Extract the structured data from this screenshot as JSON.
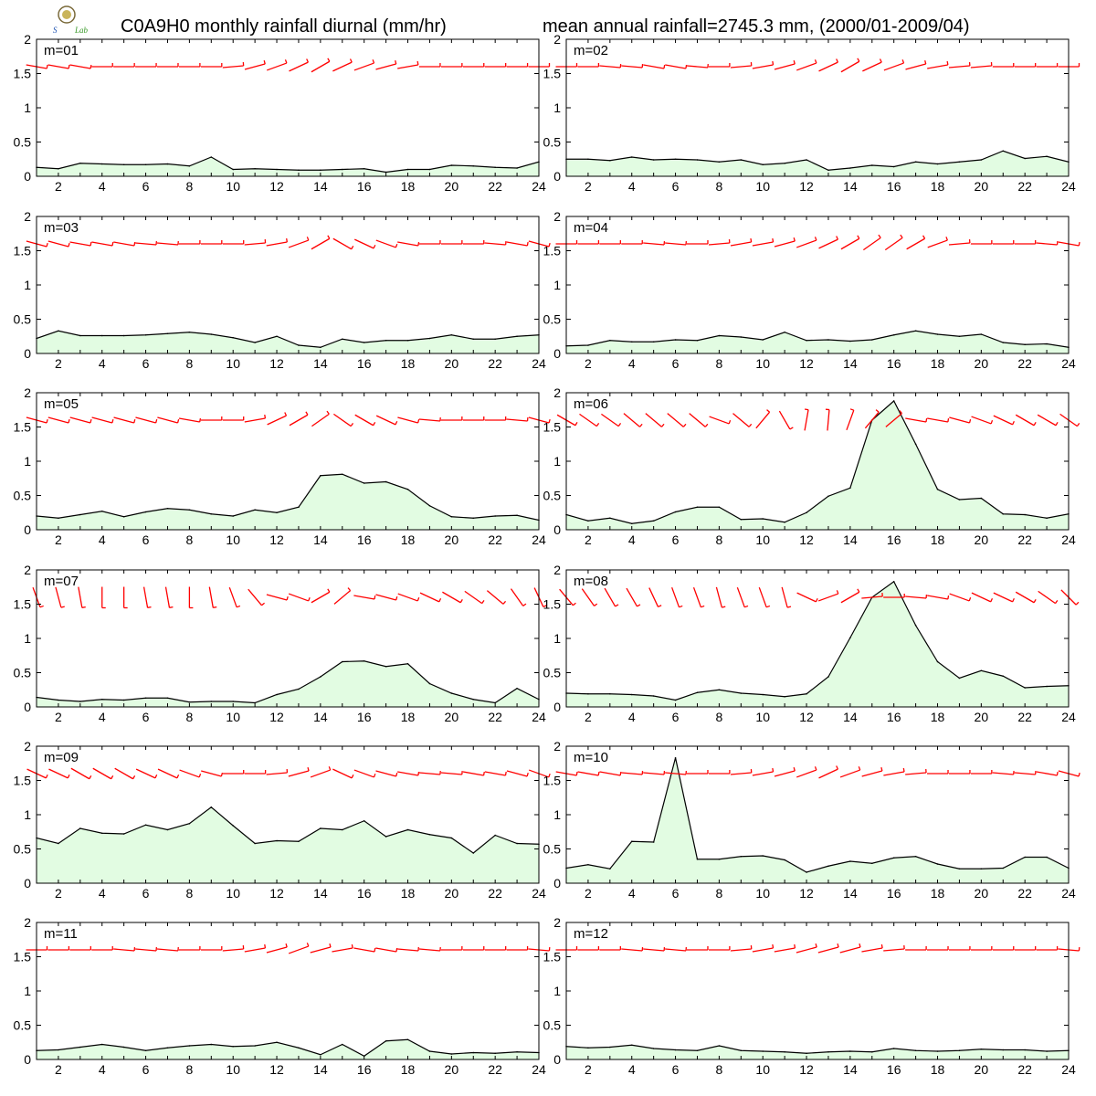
{
  "title_left": "C0A9H0 monthly rainfall diurnal (mm/hr)",
  "title_right": "mean annual rainfall=2745.3 mm, (2000/01-2009/04)",
  "colors": {
    "fill": "#e2fce2",
    "line": "#000000",
    "wind": "#ff0000",
    "frame": "#000000"
  },
  "chart_data": {
    "type": "area",
    "x": [
      1,
      2,
      3,
      4,
      5,
      6,
      7,
      8,
      9,
      10,
      11,
      12,
      13,
      14,
      15,
      16,
      17,
      18,
      19,
      20,
      21,
      22,
      23,
      24
    ],
    "xlim": [
      1,
      24
    ],
    "ylim": [
      0,
      2
    ],
    "x_tick_labels": [
      "2",
      "4",
      "6",
      "8",
      "10",
      "12",
      "14",
      "16",
      "18",
      "20",
      "22",
      "24"
    ],
    "y_tick_labels": [
      "0",
      "0.5",
      "1",
      "1.5",
      "2"
    ],
    "wind_baseline_y": 1.6,
    "panels": [
      {
        "label": "m=01",
        "values": [
          0.13,
          0.11,
          0.19,
          0.18,
          0.17,
          0.17,
          0.18,
          0.15,
          0.28,
          0.1,
          0.11,
          0.1,
          0.09,
          0.09,
          0.1,
          0.11,
          0.06,
          0.1,
          0.1,
          0.16,
          0.15,
          0.13,
          0.12,
          0.21
        ],
        "wind_angles": [
          -10,
          -10,
          -10,
          0,
          0,
          0,
          0,
          0,
          0,
          5,
          15,
          20,
          25,
          30,
          25,
          20,
          15,
          10,
          0,
          0,
          0,
          0,
          0,
          0
        ]
      },
      {
        "label": "m=02",
        "values": [
          0.25,
          0.25,
          0.23,
          0.28,
          0.24,
          0.25,
          0.24,
          0.21,
          0.24,
          0.17,
          0.19,
          0.24,
          0.09,
          0.12,
          0.16,
          0.14,
          0.21,
          0.18,
          0.21,
          0.24,
          0.37,
          0.26,
          0.29,
          0.21
        ],
        "wind_angles": [
          0,
          0,
          -5,
          -5,
          -10,
          -10,
          -5,
          0,
          5,
          10,
          15,
          20,
          25,
          30,
          25,
          20,
          15,
          10,
          5,
          5,
          0,
          0,
          0,
          0
        ]
      },
      {
        "label": "m=03",
        "values": [
          0.22,
          0.33,
          0.26,
          0.26,
          0.26,
          0.27,
          0.29,
          0.31,
          0.28,
          0.23,
          0.16,
          0.25,
          0.12,
          0.09,
          0.21,
          0.16,
          0.19,
          0.19,
          0.22,
          0.27,
          0.21,
          0.21,
          0.25,
          0.27
        ],
        "wind_angles": [
          -15,
          -15,
          -10,
          -10,
          -10,
          -5,
          -5,
          0,
          0,
          0,
          5,
          10,
          20,
          30,
          -30,
          -25,
          -20,
          -10,
          0,
          0,
          0,
          -5,
          -10,
          -15
        ]
      },
      {
        "label": "m=04",
        "values": [
          0.11,
          0.12,
          0.19,
          0.17,
          0.17,
          0.2,
          0.19,
          0.26,
          0.24,
          0.2,
          0.31,
          0.19,
          0.2,
          0.18,
          0.2,
          0.27,
          0.33,
          0.28,
          0.25,
          0.28,
          0.16,
          0.13,
          0.14,
          0.09
        ],
        "wind_angles": [
          0,
          0,
          0,
          0,
          -5,
          -5,
          0,
          5,
          10,
          10,
          15,
          20,
          25,
          30,
          35,
          35,
          30,
          20,
          5,
          0,
          0,
          0,
          -5,
          -10
        ]
      },
      {
        "label": "m=05",
        "values": [
          0.2,
          0.17,
          0.22,
          0.27,
          0.19,
          0.26,
          0.31,
          0.29,
          0.23,
          0.2,
          0.29,
          0.25,
          0.33,
          0.79,
          0.81,
          0.68,
          0.7,
          0.59,
          0.35,
          0.19,
          0.17,
          0.2,
          0.21,
          0.14
        ],
        "wind_angles": [
          -15,
          -15,
          -15,
          -15,
          -15,
          -15,
          -15,
          -10,
          0,
          0,
          10,
          25,
          30,
          35,
          -35,
          -30,
          -25,
          -15,
          -5,
          0,
          0,
          0,
          -5,
          -15
        ]
      },
      {
        "label": "m=06",
        "values": [
          0.22,
          0.13,
          0.17,
          0.09,
          0.13,
          0.26,
          0.33,
          0.33,
          0.15,
          0.16,
          0.11,
          0.25,
          0.49,
          0.61,
          1.6,
          1.88,
          1.25,
          0.59,
          0.44,
          0.46,
          0.23,
          0.22,
          0.17,
          0.23
        ],
        "wind_angles": [
          -30,
          -35,
          -35,
          -40,
          -40,
          -40,
          -40,
          -20,
          -40,
          50,
          -60,
          80,
          85,
          70,
          50,
          40,
          -10,
          -10,
          -15,
          -20,
          -25,
          -30,
          -30,
          -35
        ]
      },
      {
        "label": "m=07",
        "values": [
          0.14,
          0.1,
          0.08,
          0.11,
          0.1,
          0.13,
          0.13,
          0.07,
          0.08,
          0.08,
          0.06,
          0.18,
          0.26,
          0.44,
          0.66,
          0.67,
          0.59,
          0.63,
          0.34,
          0.2,
          0.11,
          0.06,
          0.27,
          0.11
        ],
        "wind_angles": [
          -70,
          -75,
          -80,
          -90,
          -90,
          -80,
          -80,
          -90,
          -80,
          -70,
          -50,
          -15,
          -20,
          30,
          40,
          -10,
          -15,
          -20,
          -25,
          -30,
          -35,
          -40,
          -55,
          -65
        ]
      },
      {
        "label": "m=08",
        "values": [
          0.2,
          0.19,
          0.19,
          0.18,
          0.16,
          0.1,
          0.21,
          0.25,
          0.2,
          0.18,
          0.15,
          0.19,
          0.44,
          1.01,
          1.6,
          1.83,
          1.19,
          0.66,
          0.42,
          0.53,
          0.45,
          0.28,
          0.3,
          0.31
        ],
        "wind_angles": [
          -50,
          -55,
          -60,
          -60,
          -65,
          -70,
          -70,
          -75,
          -70,
          -70,
          -75,
          -25,
          20,
          30,
          5,
          0,
          -5,
          -10,
          -20,
          -25,
          -25,
          -30,
          -35,
          -45
        ]
      },
      {
        "label": "m=09",
        "values": [
          0.66,
          0.58,
          0.8,
          0.73,
          0.72,
          0.85,
          0.78,
          0.87,
          1.11,
          0.84,
          0.58,
          0.62,
          0.61,
          0.8,
          0.78,
          0.91,
          0.68,
          0.78,
          0.71,
          0.66,
          0.44,
          0.7,
          0.58,
          0.57
        ],
        "wind_angles": [
          -25,
          -25,
          -30,
          -30,
          -30,
          -25,
          -25,
          -20,
          -15,
          0,
          0,
          5,
          15,
          20,
          -25,
          -20,
          -15,
          -10,
          -5,
          -5,
          -10,
          -10,
          -15,
          -20
        ]
      },
      {
        "label": "m=10",
        "values": [
          0.22,
          0.27,
          0.21,
          0.61,
          0.6,
          1.83,
          0.35,
          0.35,
          0.39,
          0.4,
          0.34,
          0.16,
          0.25,
          0.32,
          0.29,
          0.37,
          0.39,
          0.28,
          0.21,
          0.21,
          0.22,
          0.38,
          0.38,
          0.22
        ],
        "wind_angles": [
          -10,
          -10,
          -10,
          -5,
          -5,
          -5,
          0,
          0,
          5,
          10,
          15,
          20,
          25,
          20,
          15,
          10,
          5,
          0,
          0,
          0,
          -5,
          -5,
          -10,
          -15
        ]
      },
      {
        "label": "m=11",
        "values": [
          0.13,
          0.14,
          0.18,
          0.22,
          0.18,
          0.13,
          0.17,
          0.2,
          0.22,
          0.19,
          0.2,
          0.25,
          0.17,
          0.07,
          0.22,
          0.05,
          0.27,
          0.29,
          0.12,
          0.08,
          0.1,
          0.09,
          0.11,
          0.1
        ],
        "wind_angles": [
          0,
          0,
          0,
          0,
          -5,
          -5,
          -5,
          0,
          0,
          5,
          10,
          15,
          20,
          15,
          10,
          -10,
          -10,
          -5,
          -5,
          0,
          0,
          0,
          0,
          -5
        ]
      },
      {
        "label": "m=12",
        "values": [
          0.19,
          0.17,
          0.18,
          0.21,
          0.16,
          0.14,
          0.13,
          0.2,
          0.13,
          0.12,
          0.11,
          0.09,
          0.11,
          0.12,
          0.11,
          0.16,
          0.13,
          0.12,
          0.13,
          0.15,
          0.14,
          0.14,
          0.12,
          0.13
        ],
        "wind_angles": [
          0,
          0,
          0,
          -5,
          -5,
          -5,
          0,
          0,
          5,
          10,
          10,
          15,
          15,
          15,
          10,
          5,
          0,
          0,
          0,
          0,
          0,
          0,
          0,
          -5
        ]
      }
    ]
  }
}
